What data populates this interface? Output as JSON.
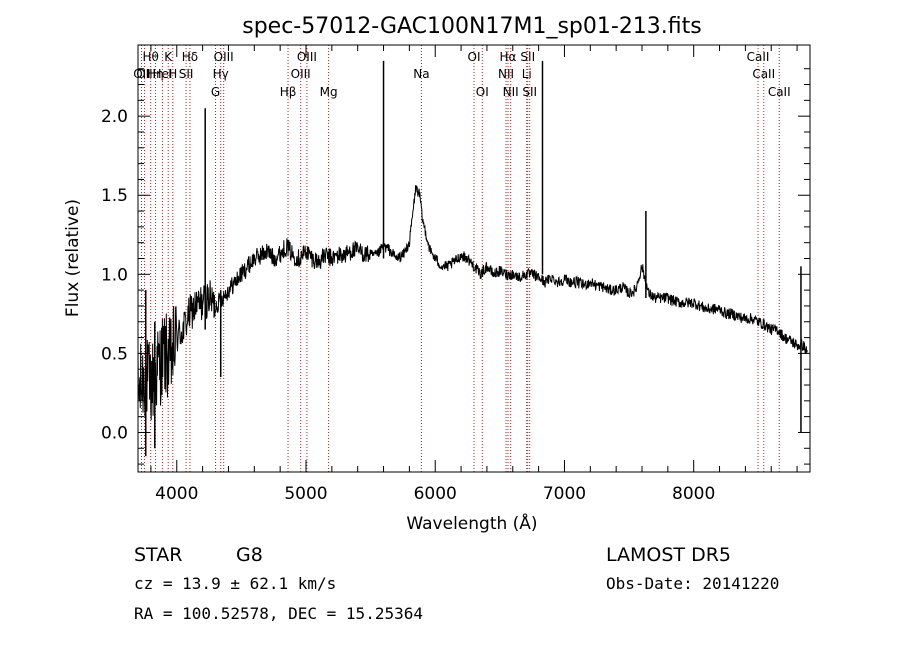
{
  "colors": {
    "spectrum": "#000000",
    "line_marker": "#b22222",
    "axes": "#000000"
  },
  "chart_data": {
    "type": "line",
    "title": "spec-57012-GAC100N17M1_sp01-213.fits",
    "xlabel": "Wavelength (Å)",
    "ylabel": "Flux (relative)",
    "xlim": [
      3700,
      8900
    ],
    "ylim": [
      -0.25,
      2.45
    ],
    "xticks": [
      4000,
      5000,
      6000,
      7000,
      8000
    ],
    "xtick_labels": [
      "4000",
      "5000",
      "6000",
      "7000",
      "8000"
    ],
    "yticks": [
      0.0,
      0.5,
      1.0,
      1.5,
      2.0
    ],
    "ytick_labels": [
      "0.0",
      "0.5",
      "1.0",
      "1.5",
      "2.0"
    ],
    "grid": false,
    "series": [
      {
        "x": [
          3700,
          3750,
          3800,
          3850,
          3900,
          3950,
          4000,
          4050,
          4100,
          4150,
          4200,
          4250,
          4300,
          4350,
          4400,
          4450,
          4500,
          4550,
          4600,
          4650,
          4700,
          4750,
          4800,
          4850,
          4900,
          4950,
          5000,
          5050,
          5100,
          5150,
          5200,
          5250,
          5300,
          5350,
          5400,
          5450,
          5500,
          5550,
          5600,
          5650,
          5700,
          5750,
          5800,
          5850,
          5880,
          5900,
          5930,
          5960,
          6000,
          6050,
          6100,
          6150,
          6200,
          6250,
          6300,
          6350,
          6400,
          6450,
          6500,
          6550,
          6600,
          6650,
          6700,
          6750,
          6800,
          6850,
          6900,
          6950,
          7000,
          7050,
          7100,
          7150,
          7200,
          7250,
          7300,
          7350,
          7400,
          7450,
          7500,
          7550,
          7600,
          7650,
          7700,
          7750,
          7800,
          7850,
          7900,
          7950,
          8000,
          8050,
          8100,
          8150,
          8200,
          8250,
          8300,
          8350,
          8400,
          8450,
          8500,
          8550,
          8600,
          8650,
          8700,
          8750,
          8800,
          8850,
          8880
        ],
        "y": [
          0.25,
          0.35,
          0.3,
          0.4,
          0.5,
          0.45,
          0.6,
          0.65,
          0.75,
          0.8,
          0.82,
          0.85,
          0.8,
          0.85,
          0.9,
          0.95,
          1.0,
          1.05,
          1.1,
          1.12,
          1.15,
          1.1,
          1.13,
          1.18,
          1.12,
          1.1,
          1.15,
          1.1,
          1.08,
          1.12,
          1.1,
          1.12,
          1.12,
          1.15,
          1.15,
          1.13,
          1.12,
          1.12,
          1.18,
          1.15,
          1.1,
          1.12,
          1.2,
          1.55,
          1.5,
          1.35,
          1.25,
          1.15,
          1.1,
          1.05,
          1.05,
          1.08,
          1.12,
          1.1,
          1.05,
          1.0,
          1.05,
          1.0,
          1.02,
          1.0,
          1.0,
          0.98,
          1.0,
          1.0,
          0.98,
          0.95,
          0.98,
          0.95,
          0.97,
          0.95,
          0.95,
          0.93,
          0.95,
          0.93,
          0.92,
          0.9,
          0.9,
          0.92,
          0.88,
          0.9,
          1.05,
          0.88,
          0.85,
          0.85,
          0.85,
          0.83,
          0.82,
          0.82,
          0.82,
          0.8,
          0.78,
          0.78,
          0.78,
          0.75,
          0.75,
          0.73,
          0.72,
          0.72,
          0.7,
          0.68,
          0.65,
          0.65,
          0.6,
          0.58,
          0.55,
          0.55,
          0.5
        ]
      }
    ],
    "spikes": [
      {
        "x": 4220,
        "y_low": 0.65,
        "y_high": 2.05
      },
      {
        "x": 4340,
        "y_low": 0.35,
        "y_high": 0.9
      },
      {
        "x": 5600,
        "y_low": 1.1,
        "y_high": 2.35
      },
      {
        "x": 6830,
        "y_low": 1.0,
        "y_high": 2.35
      },
      {
        "x": 7630,
        "y_low": 0.85,
        "y_high": 1.4
      },
      {
        "x": 8830,
        "y_low": 0.0,
        "y_high": 1.05
      },
      {
        "x": 3760,
        "y_low": -0.15,
        "y_high": 0.9
      },
      {
        "x": 3830,
        "y_low": -0.1,
        "y_high": 0.7
      }
    ],
    "lines": [
      {
        "x": 3727,
        "label": "OII",
        "row": 2
      },
      {
        "x": 3750,
        "label": "OII",
        "row": 1
      },
      {
        "x": 3798,
        "label": "Hθ",
        "row": 0
      },
      {
        "x": 3835,
        "label": "Hη",
        "row": 2
      },
      {
        "x": 3889,
        "label": "HeI",
        "row": 1
      },
      {
        "x": 3934,
        "label": "K",
        "row": 0
      },
      {
        "x": 3969,
        "label": "H",
        "row": 2
      },
      {
        "x": 4072,
        "label": "SII",
        "row": 1
      },
      {
        "x": 4102,
        "label": "Hδ",
        "row": 0
      },
      {
        "x": 4300,
        "label": "G",
        "row": 3
      },
      {
        "x": 4340,
        "label": "Hγ",
        "row": 2
      },
      {
        "x": 4363,
        "label": "OIII",
        "row": 0
      },
      {
        "x": 4861,
        "label": "Hβ",
        "row": 3
      },
      {
        "x": 4959,
        "label": "OIII",
        "row": 2
      },
      {
        "x": 5007,
        "label": "OIII",
        "row": 0
      },
      {
        "x": 5175,
        "label": "Mg",
        "row": 3
      },
      {
        "x": 5893,
        "label": "Na",
        "row": 2
      },
      {
        "x": 6300,
        "label": "OI",
        "row": 0
      },
      {
        "x": 6364,
        "label": "OI",
        "row": 3
      },
      {
        "x": 6548,
        "label": "NII",
        "row": 1
      },
      {
        "x": 6563,
        "label": "Hα",
        "row": 0
      },
      {
        "x": 6584,
        "label": "NII",
        "row": 3
      },
      {
        "x": 6708,
        "label": "Li",
        "row": 2
      },
      {
        "x": 6716,
        "label": "SII",
        "row": 0
      },
      {
        "x": 6731,
        "label": "SII",
        "row": 3
      },
      {
        "x": 8498,
        "label": "CaII",
        "row": 0
      },
      {
        "x": 8542,
        "label": "CaII",
        "row": 1
      },
      {
        "x": 8662,
        "label": "CaII",
        "row": 3
      }
    ]
  },
  "info": {
    "class": "STAR",
    "subclass": "G8",
    "cz": "cz = 13.9 ± 62.1 km/s",
    "radec": "RA = 100.52578, DEC =  15.25364",
    "survey": "LAMOST DR5",
    "obsdate": "Obs-Date: 20141220"
  }
}
